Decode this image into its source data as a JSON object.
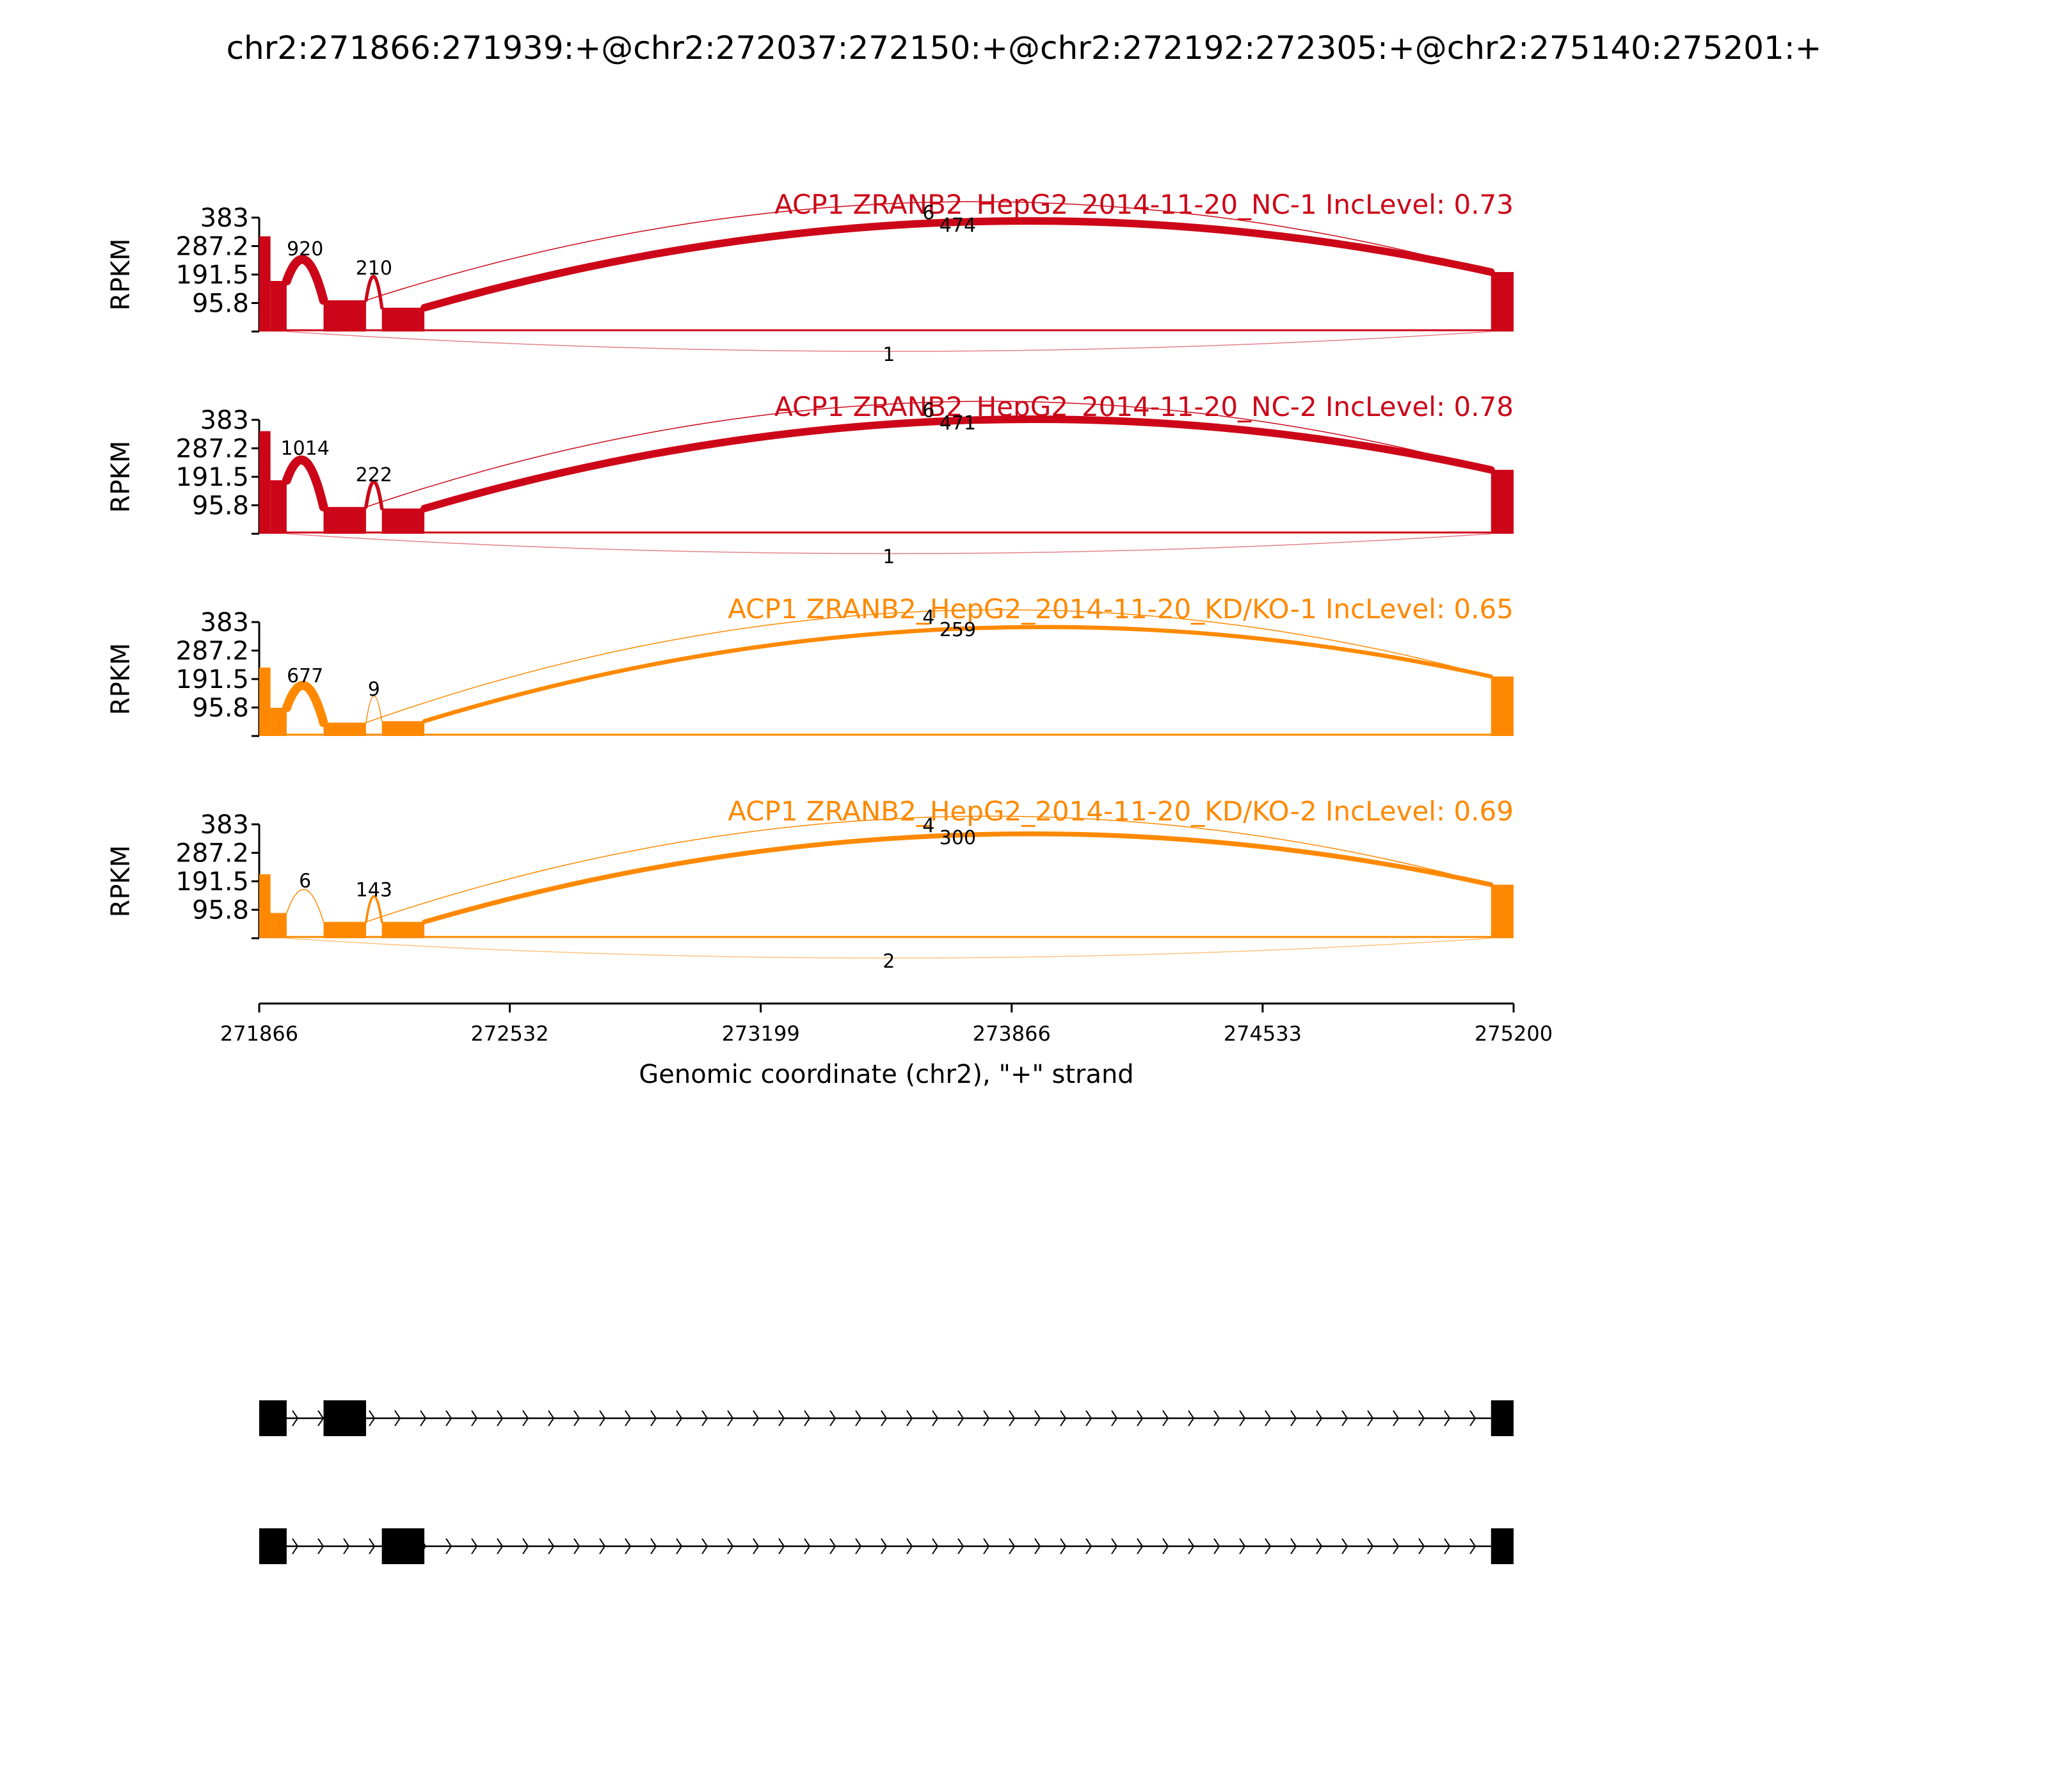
{
  "chart_data": {
    "type": "sashimi",
    "title": "chr2:271866:271939:+@chr2:272037:272150:+@chr2:272192:272305:+@chr2:275140:275201:+",
    "xlabel": "Genomic coordinate (chr2), \"+\" strand",
    "ylabel": "RPKM",
    "xlim": [
      271866,
      275200
    ],
    "x_ticks": [
      "271866",
      "272532",
      "273199",
      "273866",
      "274533",
      "275200"
    ],
    "ylim": [
      0,
      383
    ],
    "y_ticks": [
      "383",
      "287.2",
      "191.5",
      "95.8"
    ],
    "colors": {
      "NC": "#cc0618",
      "KD": "#fe8900"
    },
    "exons": [
      {
        "start": 271866,
        "end": 271939
      },
      {
        "start": 272037,
        "end": 272150
      },
      {
        "start": 272192,
        "end": 272305
      },
      {
        "start": 275140,
        "end": 275201
      }
    ],
    "tracks": [
      {
        "name": "ACP1 ZRANB2_HepG2_2014-11-20_NC-1 IncLevel: 0.73",
        "color": "#cc0618",
        "coverage": [
          320,
          170,
          105,
          80,
          200
        ],
        "junctions": [
          {
            "from": 271939,
            "to": 272037,
            "count": "920",
            "side": "above"
          },
          {
            "from": 272150,
            "to": 272192,
            "count": "210",
            "side": "above"
          },
          {
            "from": 272150,
            "to": 275140,
            "count": "6",
            "side": "above"
          },
          {
            "from": 272305,
            "to": 275140,
            "count": "474",
            "side": "above"
          },
          {
            "from": 271939,
            "to": 275140,
            "count": "1",
            "side": "below"
          }
        ]
      },
      {
        "name": "ACP1 ZRANB2_HepG2_2014-11-20_NC-2 IncLevel: 0.78",
        "color": "#cc0618",
        "coverage": [
          345,
          180,
          90,
          85,
          215
        ],
        "junctions": [
          {
            "from": 271939,
            "to": 272037,
            "count": "1014",
            "side": "above"
          },
          {
            "from": 272150,
            "to": 272192,
            "count": "222",
            "side": "above"
          },
          {
            "from": 272150,
            "to": 275140,
            "count": "6",
            "side": "above"
          },
          {
            "from": 272305,
            "to": 275140,
            "count": "471",
            "side": "above"
          },
          {
            "from": 271939,
            "to": 275140,
            "count": "1",
            "side": "below"
          }
        ]
      },
      {
        "name": "ACP1 ZRANB2_HepG2_2014-11-20_KD/KO-1 IncLevel: 0.65",
        "color": "#fe8900",
        "coverage": [
          230,
          95,
          45,
          50,
          200
        ],
        "junctions": [
          {
            "from": 271939,
            "to": 272037,
            "count": "677",
            "side": "above"
          },
          {
            "from": 272150,
            "to": 272192,
            "count": "9",
            "side": "above"
          },
          {
            "from": 272150,
            "to": 275140,
            "count": "4",
            "side": "above"
          },
          {
            "from": 272305,
            "to": 275140,
            "count": "259",
            "side": "above"
          }
        ]
      },
      {
        "name": "ACP1 ZRANB2_HepG2_2014-11-20_KD/KO-2 IncLevel: 0.69",
        "color": "#fe8900",
        "coverage": [
          215,
          85,
          55,
          55,
          180
        ],
        "junctions": [
          {
            "from": 271939,
            "to": 272037,
            "count": "6",
            "side": "above"
          },
          {
            "from": 272150,
            "to": 272192,
            "count": "143",
            "side": "above"
          },
          {
            "from": 272150,
            "to": 275140,
            "count": "4",
            "side": "above"
          },
          {
            "from": 272305,
            "to": 275140,
            "count": "300",
            "side": "above"
          },
          {
            "from": 271939,
            "to": 275140,
            "count": "2",
            "side": "below"
          }
        ]
      }
    ],
    "isoforms": [
      {
        "exons": [
          [
            271866,
            271939
          ],
          [
            272037,
            272150
          ],
          [
            275140,
            275201
          ]
        ]
      },
      {
        "exons": [
          [
            271866,
            271939
          ],
          [
            272192,
            272305
          ],
          [
            275140,
            275201
          ]
        ]
      }
    ]
  }
}
